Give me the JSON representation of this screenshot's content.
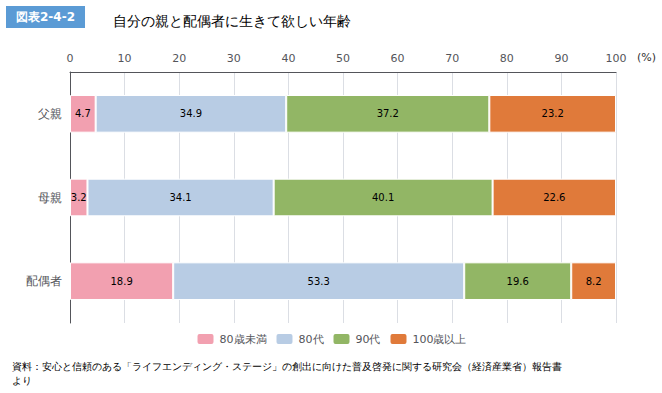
{
  "chart_data": {
    "type": "bar",
    "orientation": "horizontal",
    "stacked": true,
    "title": "自分の親と配偶者に生きて欲しい年齢",
    "annotations": [
      "図表2-4-2",
      "(%)",
      "資料：安心と信頼のある「ライフエンディング・ステージ」の創出に向けた普及啓発に関する研究会（経済産業省）報告書\nより"
    ],
    "categories": [
      "父親",
      "母親",
      "配偶者"
    ],
    "series": [
      {
        "name": "80歳未満",
        "color": "#f2a0b0",
        "values": [
          4.7,
          3.2,
          18.9
        ]
      },
      {
        "name": "80代",
        "color": "#b8cce4",
        "values": [
          34.9,
          34.1,
          53.3
        ]
      },
      {
        "name": "90代",
        "color": "#92b665",
        "values": [
          37.2,
          40.1,
          19.6
        ]
      },
      {
        "name": "100歳以上",
        "color": "#e07a3a",
        "values": [
          23.2,
          22.6,
          8.2
        ]
      }
    ],
    "xlim": [
      0,
      100
    ],
    "xticks": [
      0,
      10,
      20,
      30,
      40,
      50,
      60,
      70,
      80,
      90,
      100
    ],
    "grid": true,
    "legend": "bottom",
    "data_labels": true
  }
}
